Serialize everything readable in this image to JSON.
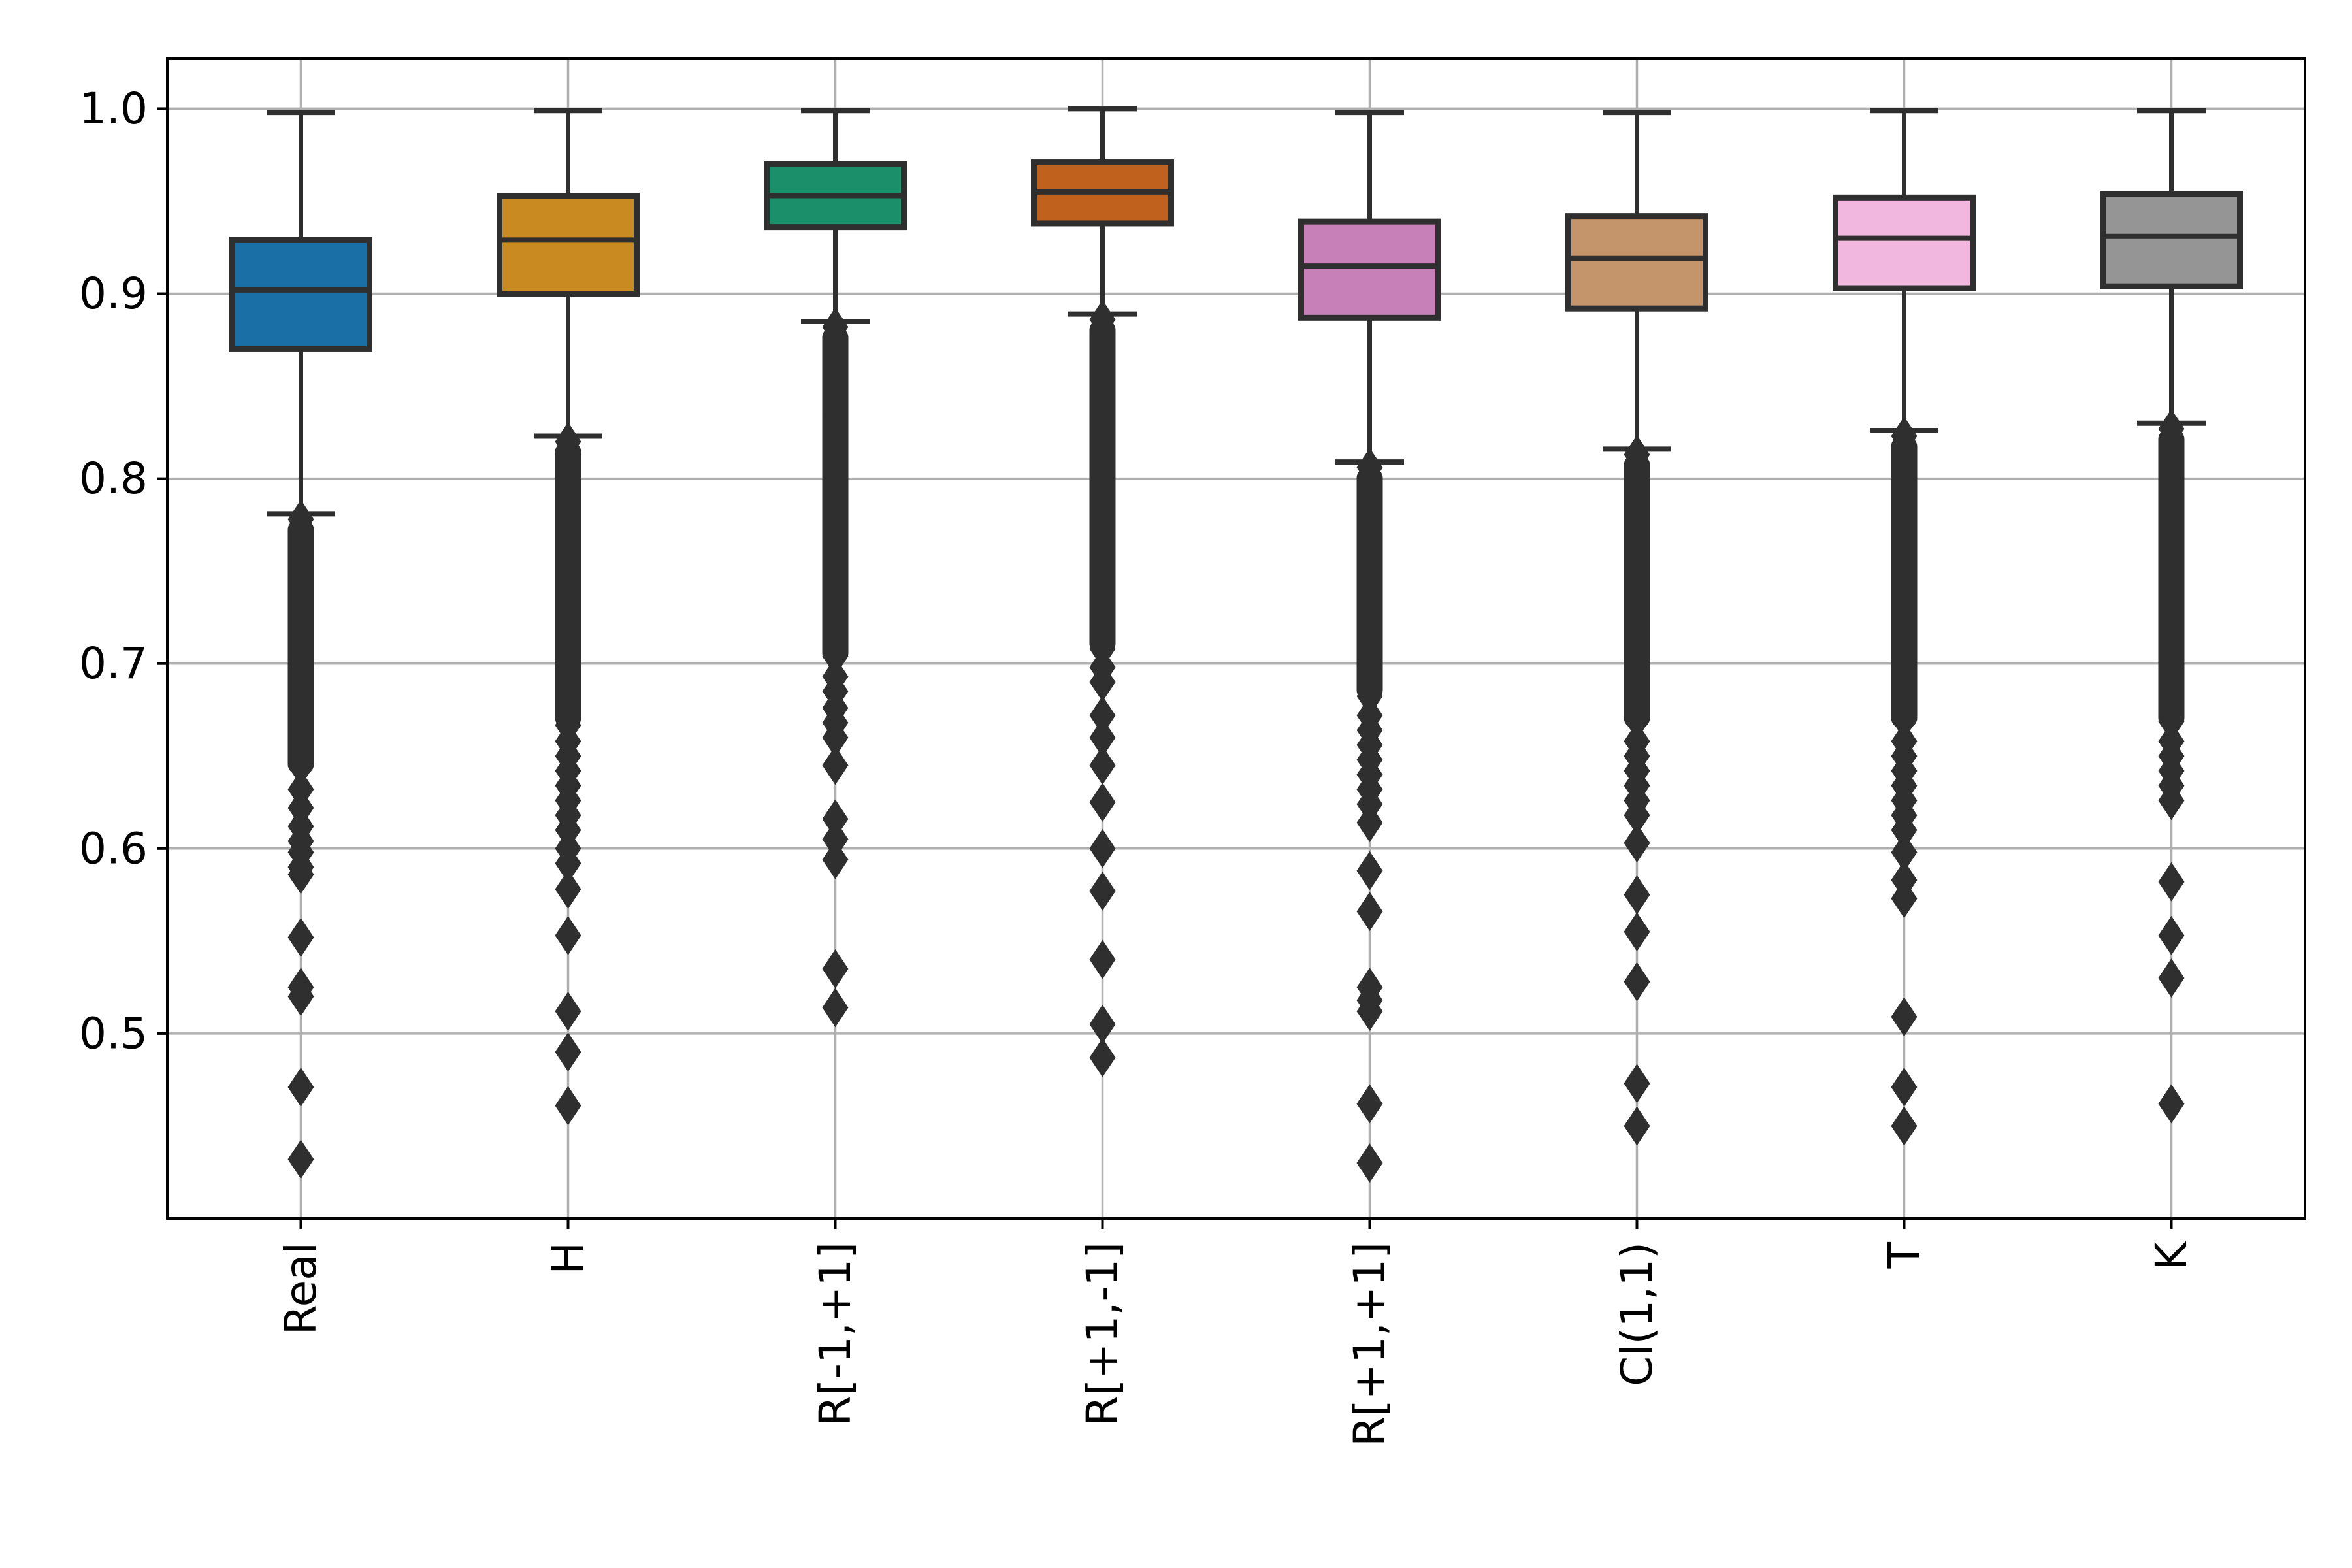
{
  "chart_data": {
    "type": "box",
    "title": "",
    "xlabel": "",
    "ylabel": "",
    "ylim": [
      0.4,
      1.027
    ],
    "yticks": [
      0.5,
      0.6,
      0.7,
      0.8,
      0.9,
      1.0
    ],
    "ytick_labels": [
      "0.5",
      "0.6",
      "0.7",
      "0.8",
      "0.9",
      "1.0"
    ],
    "grid": true,
    "categories": [
      "Real",
      "H",
      "R[-1,+1]",
      "R[+1,-1]",
      "R[+1,+1]",
      "Cl(1,1)",
      "T",
      "K"
    ],
    "colors": [
      "#1a70a6",
      "#c98a21",
      "#1b8f6a",
      "#c0621e",
      "#c880b8",
      "#c4946a",
      "#f2b7de",
      "#959595"
    ],
    "boxes": [
      {
        "name": "Real",
        "whislo": 0.781,
        "q1": 0.87,
        "med": 0.902,
        "q3": 0.929,
        "whishi": 0.998,
        "fliers_dense_top": 0.778,
        "fliers_dense_bottom": 0.64,
        "fliers": [
          0.632,
          0.622,
          0.612,
          0.604,
          0.598,
          0.59,
          0.586,
          0.552,
          0.525,
          0.52,
          0.471,
          0.432
        ]
      },
      {
        "name": "H",
        "whislo": 0.823,
        "q1": 0.9,
        "med": 0.929,
        "q3": 0.953,
        "whishi": 0.999,
        "fliers_dense_top": 0.82,
        "fliers_dense_bottom": 0.665,
        "fliers": [
          0.658,
          0.65,
          0.642,
          0.634,
          0.626,
          0.618,
          0.61,
          0.6,
          0.592,
          0.578,
          0.553,
          0.512,
          0.49,
          0.461
        ]
      },
      {
        "name": "R[-1,+1]",
        "whislo": 0.885,
        "q1": 0.936,
        "med": 0.953,
        "q3": 0.97,
        "whishi": 0.999,
        "fliers_dense_top": 0.882,
        "fliers_dense_bottom": 0.7,
        "fliers": [
          0.693,
          0.685,
          0.676,
          0.668,
          0.66,
          0.645,
          0.616,
          0.605,
          0.594,
          0.535,
          0.514
        ]
      },
      {
        "name": "R[+1,-1]",
        "whislo": 0.889,
        "q1": 0.938,
        "med": 0.955,
        "q3": 0.971,
        "whishi": 1.0,
        "fliers_dense_top": 0.886,
        "fliers_dense_bottom": 0.705,
        "fliers": [
          0.698,
          0.69,
          0.672,
          0.66,
          0.645,
          0.625,
          0.6,
          0.577,
          0.54,
          0.505,
          0.487
        ]
      },
      {
        "name": "R[+1,+1]",
        "whislo": 0.809,
        "q1": 0.887,
        "med": 0.915,
        "q3": 0.939,
        "whishi": 0.998,
        "fliers_dense_top": 0.806,
        "fliers_dense_bottom": 0.68,
        "fliers": [
          0.672,
          0.664,
          0.656,
          0.648,
          0.64,
          0.632,
          0.624,
          0.614,
          0.588,
          0.566,
          0.525,
          0.518,
          0.512,
          0.462,
          0.43
        ]
      },
      {
        "name": "Cl(1,1)",
        "whislo": 0.816,
        "q1": 0.892,
        "med": 0.919,
        "q3": 0.942,
        "whishi": 0.998,
        "fliers_dense_top": 0.813,
        "fliers_dense_bottom": 0.665,
        "fliers": [
          0.658,
          0.65,
          0.642,
          0.634,
          0.626,
          0.618,
          0.603,
          0.575,
          0.555,
          0.528,
          0.473,
          0.45
        ]
      },
      {
        "name": "T",
        "whislo": 0.826,
        "q1": 0.903,
        "med": 0.93,
        "q3": 0.952,
        "whishi": 0.999,
        "fliers_dense_top": 0.823,
        "fliers_dense_bottom": 0.665,
        "fliers": [
          0.658,
          0.65,
          0.642,
          0.634,
          0.626,
          0.618,
          0.61,
          0.598,
          0.583,
          0.573,
          0.509,
          0.471,
          0.45
        ]
      },
      {
        "name": "K",
        "whislo": 0.83,
        "q1": 0.904,
        "med": 0.931,
        "q3": 0.954,
        "whishi": 0.999,
        "fliers_dense_top": 0.827,
        "fliers_dense_bottom": 0.665,
        "fliers": [
          0.658,
          0.65,
          0.642,
          0.634,
          0.626,
          0.582,
          0.553,
          0.53,
          0.462
        ]
      }
    ]
  }
}
